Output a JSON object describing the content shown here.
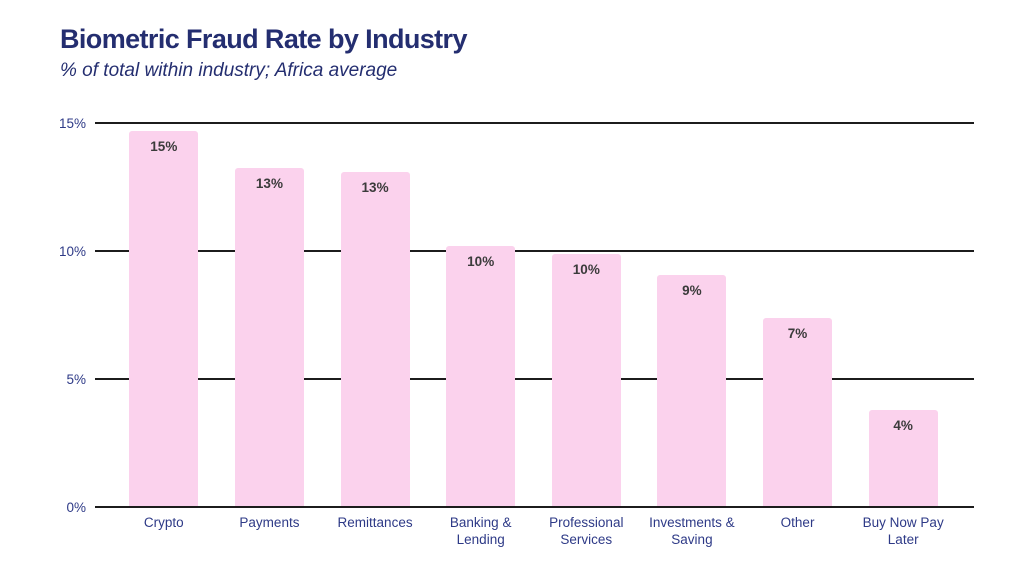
{
  "header": {
    "title": "Biometric Fraud Rate by Industry",
    "subtitle": "% of total within industry; Africa average"
  },
  "chart_data": {
    "type": "bar",
    "title": "Biometric Fraud Rate by Industry",
    "subtitle": "% of total within industry; Africa average",
    "categories": [
      "Crypto",
      "Payments",
      "Remittances",
      "Banking & Lending",
      "Professional Services",
      "Investments & Saving",
      "Other",
      "Buy Now Pay Later"
    ],
    "values": [
      15,
      13,
      13,
      10,
      10,
      9,
      7,
      4
    ],
    "value_labels": [
      "15%",
      "13%",
      "13%",
      "10%",
      "10%",
      "9%",
      "7%",
      "4%"
    ],
    "bar_heights_pct_precise": [
      14.7,
      13.25,
      13.1,
      10.2,
      9.9,
      9.05,
      7.4,
      3.8
    ],
    "xlabel": "",
    "ylabel": "",
    "ylim": [
      0,
      15
    ],
    "yticks": [
      0,
      5,
      10,
      15
    ],
    "ytick_labels": [
      "0%",
      "5%",
      "10%",
      "15%"
    ],
    "grid": "horizontal",
    "legend": "none",
    "colors": {
      "background": "#ffffff",
      "title_text": "#242e70",
      "axis_text": "#2e3a87",
      "bar_fill": "#fbd2ed",
      "bar_value_text": "#3b3b3b",
      "gridline": "#1c1c1c"
    }
  }
}
